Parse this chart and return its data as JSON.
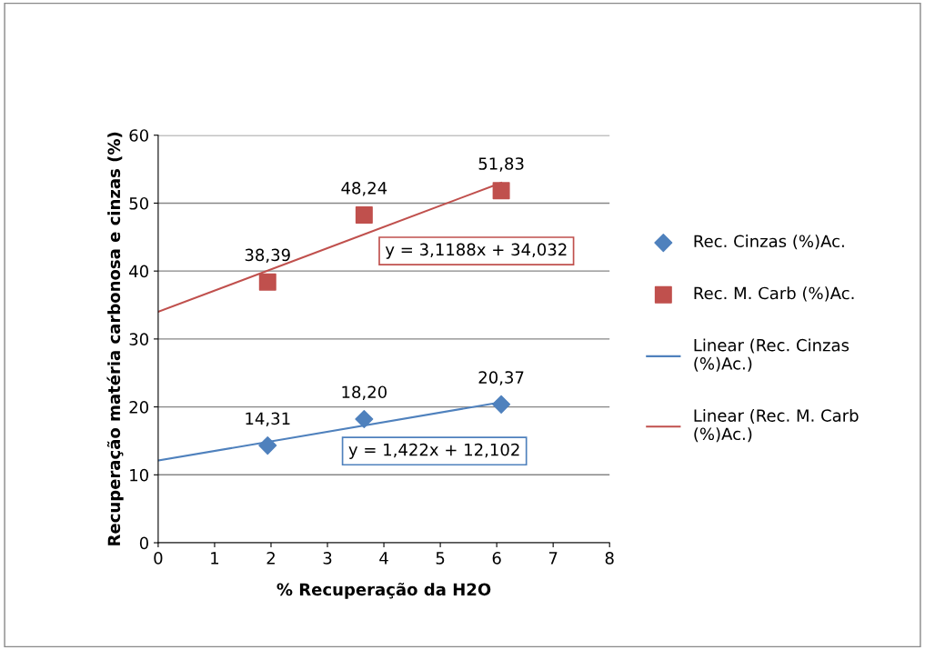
{
  "chart_data": {
    "type": "scatter",
    "xlabel": "% Recuperação da H2O",
    "ylabel": "Recuperação matéria carbonosa e cinzas (%)",
    "xlim": [
      0,
      8
    ],
    "xticks": [
      0,
      1,
      2,
      3,
      4,
      5,
      6,
      7,
      8
    ],
    "ylim": [
      0,
      60
    ],
    "yticks": [
      0,
      10,
      20,
      30,
      40,
      50,
      60
    ],
    "grid": "y",
    "legend": "right",
    "series": [
      {
        "name": "Rec. Cinzas (%)Ac.",
        "marker": "diamond",
        "color": "#4f81bd",
        "x": [
          1.94,
          3.65,
          6.08
        ],
        "values": [
          14.31,
          18.2,
          20.37
        ],
        "value_labels": [
          "14,31",
          "18,20",
          "20,37"
        ]
      },
      {
        "name": "Rec. M. Carb (%)Ac.",
        "marker": "square",
        "color": "#c0504d",
        "x": [
          1.94,
          3.65,
          6.08
        ],
        "values": [
          38.39,
          48.24,
          51.83
        ],
        "value_labels": [
          "38,39",
          "48,24",
          "51,83"
        ]
      },
      {
        "name": "Linear (Rec. Cinzas (%)Ac.)",
        "type": "line",
        "marker": "none",
        "color": "#4f81bd",
        "x": [
          0,
          6.08
        ],
        "values": [
          12.1,
          20.7
        ]
      },
      {
        "name": "Linear (Rec. M. Carb (%)Ac.)",
        "type": "line",
        "marker": "none",
        "color": "#c0504d",
        "x": [
          0,
          6.08
        ],
        "values": [
          34.0,
          53.0
        ]
      }
    ],
    "annotations": [
      "y = 1,422x + 12,102",
      "y = 3,1188x + 34,032"
    ]
  }
}
